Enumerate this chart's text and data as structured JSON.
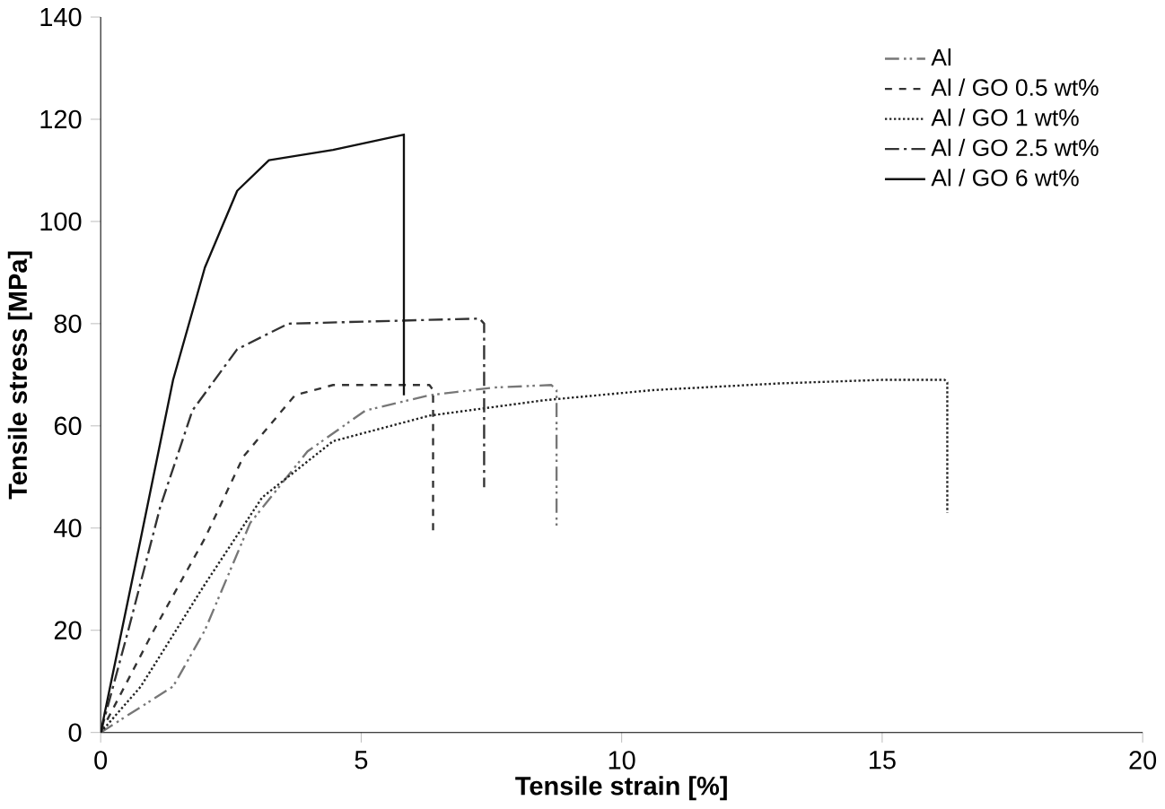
{
  "chart_data": {
    "type": "line",
    "xlabel": "Tensile strain [%]",
    "ylabel": "Tensile stress  [MPa]",
    "xlim": [
      0,
      20
    ],
    "xticks": [
      0,
      5,
      10,
      15,
      20
    ],
    "ylim": [
      0,
      140
    ],
    "yticks": [
      0,
      20,
      40,
      60,
      80,
      100,
      120,
      140
    ],
    "legend": "top right",
    "grid": false,
    "marker": "none",
    "series": [
      {
        "name": "Al",
        "color": "#777777",
        "line_style": "dashdotdot",
        "x": [
          0,
          1.39,
          2.0,
          2.87,
          3.97,
          5.08,
          6.31,
          7.54,
          8.65,
          8.75,
          8.75
        ],
        "values": [
          0,
          9,
          20,
          41,
          55,
          63,
          66,
          67.5,
          68,
          67,
          40
        ]
      },
      {
        "name": "Al / GO 0.5 wt%",
        "color": "#333333",
        "line_style": "dashed",
        "x": [
          0,
          1.02,
          2.0,
          2.74,
          3.73,
          4.46,
          6.31,
          6.38,
          6.38
        ],
        "values": [
          0,
          20,
          38,
          54,
          66,
          68,
          68,
          67,
          39.5
        ]
      },
      {
        "name": "Al / GO 1  wt%",
        "color": "#222222",
        "line_style": "dotted",
        "x": [
          0,
          0.77,
          2.0,
          3.1,
          4.46,
          6.31,
          8.5,
          10.6,
          13,
          15,
          16.2,
          16.25,
          16.25
        ],
        "values": [
          0,
          9,
          29,
          46,
          57,
          62,
          65,
          67,
          68.3,
          69,
          69,
          68.5,
          43
        ]
      },
      {
        "name": "Al / GO 2.5  wt%",
        "color": "#333333",
        "line_style": "dashdot",
        "x": [
          0,
          0.53,
          1.14,
          1.76,
          2.62,
          3.6,
          7.27,
          7.36,
          7.36
        ],
        "values": [
          0,
          20,
          44,
          63,
          75,
          80,
          81,
          80,
          48
        ]
      },
      {
        "name": "Al / GO 6 wt%",
        "color": "#111111",
        "line_style": "solid",
        "x": [
          0,
          0.77,
          1.39,
          2.0,
          2.62,
          3.23,
          4.46,
          5.82,
          5.82
        ],
        "values": [
          0,
          38,
          69,
          91,
          106,
          112,
          114,
          117,
          66
        ]
      }
    ]
  }
}
